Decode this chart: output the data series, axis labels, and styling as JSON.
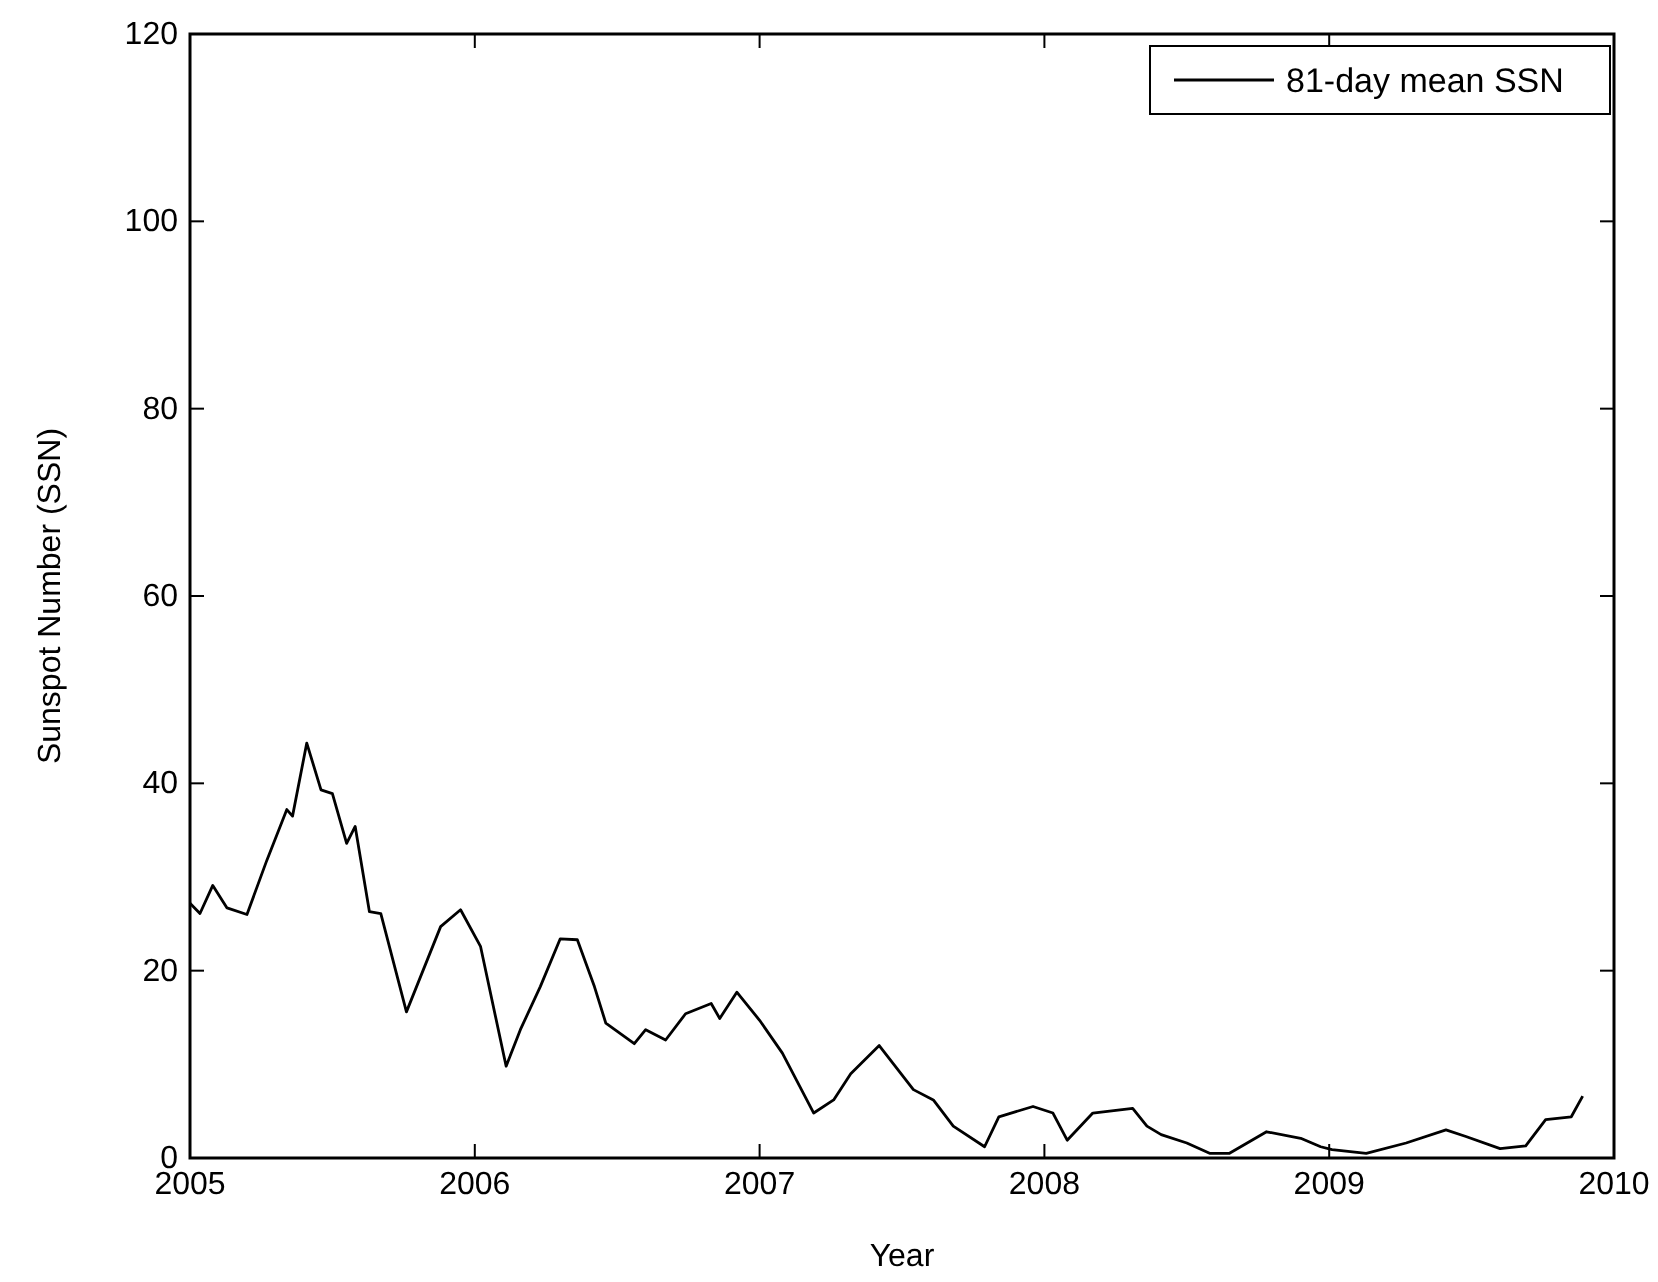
{
  "chart_data": {
    "type": "line",
    "xlabel": "Year",
    "ylabel": "Sunspot Number (SSN)",
    "xlim": [
      2005,
      2010
    ],
    "ylim": [
      0,
      120
    ],
    "xticks": [
      2005,
      2006,
      2007,
      2008,
      2009,
      2010
    ],
    "yticks": [
      0,
      20,
      40,
      60,
      80,
      100,
      120
    ],
    "grid": false,
    "legend": "top right",
    "marker": "none",
    "line_style": "solid",
    "series": [
      {
        "name": "81-day mean SSN",
        "color": "#000000",
        "x": [
          2005.0,
          2005.035,
          2005.08,
          2005.13,
          2005.2,
          2005.27,
          2005.34,
          2005.36,
          2005.41,
          2005.46,
          2005.5,
          2005.55,
          2005.58,
          2005.63,
          2005.67,
          2005.76,
          2005.88,
          2005.95,
          2006.02,
          2006.11,
          2006.16,
          2006.23,
          2006.3,
          2006.36,
          2006.42,
          2006.46,
          2006.56,
          2006.6,
          2006.67,
          2006.74,
          2006.83,
          2006.86,
          2006.92,
          2007.0,
          2007.08,
          2007.19,
          2007.26,
          2007.32,
          2007.42,
          2007.54,
          2007.61,
          2007.68,
          2007.79,
          2007.84,
          2007.96,
          2008.03,
          2008.08,
          2008.17,
          2008.31,
          2008.36,
          2008.41,
          2008.5,
          2008.58,
          2008.65,
          2008.78,
          2008.9,
          2008.97,
          2009.01,
          2009.13,
          2009.27,
          2009.41,
          2009.48,
          2009.6,
          2009.69,
          2009.76,
          2009.85,
          2009.89
        ],
        "values": [
          27.2,
          26.1,
          29.1,
          26.7,
          26.0,
          31.8,
          37.2,
          36.5,
          44.3,
          39.3,
          38.9,
          33.6,
          35.4,
          26.3,
          26.1,
          15.6,
          24.7,
          26.5,
          22.6,
          9.8,
          13.7,
          18.3,
          23.4,
          23.3,
          18.3,
          14.4,
          12.2,
          13.7,
          12.6,
          15.4,
          16.5,
          14.9,
          17.7,
          14.7,
          11.2,
          4.8,
          6.2,
          9.0,
          12.0,
          7.3,
          6.2,
          3.4,
          1.2,
          4.4,
          5.5,
          4.8,
          1.9,
          4.8,
          5.3,
          3.4,
          2.5,
          1.6,
          0.5,
          0.5,
          2.8,
          2.1,
          1.2,
          0.9,
          0.5,
          1.6,
          3.0,
          2.3,
          1.0,
          1.3,
          4.1,
          4.4,
          6.6
        ]
      }
    ]
  }
}
